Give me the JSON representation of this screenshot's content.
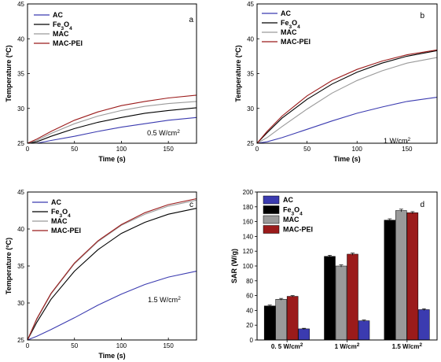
{
  "colors": {
    "AC": "#3b3bb0",
    "Fe3O4": "#000000",
    "MAC": "#9a9a9a",
    "MAC-PEI": "#9b1b1b"
  },
  "chart_data": [
    {
      "panel": "a",
      "type": "line",
      "title": "",
      "xlabel": "Time (s)",
      "ylabel": "Temperature (ºC)",
      "xlim": [
        0,
        180
      ],
      "ylim": [
        25,
        45
      ],
      "xticks": [
        "0",
        "50",
        "100",
        "150"
      ],
      "yticks": [
        "25",
        "30",
        "35",
        "40",
        "45"
      ],
      "annotation": {
        "main": "0.5 W/cm",
        "sup": "2"
      },
      "legend": [
        {
          "key": "AC",
          "main": "AC",
          "sub": ""
        },
        {
          "key": "Fe3O4",
          "main": "Fe",
          "sub": "3",
          "main2": "O",
          "sub2": "4"
        },
        {
          "key": "MAC",
          "main": "MAC",
          "sub": ""
        },
        {
          "key": "MAC-PEI",
          "main": "MAC-PEI",
          "sub": ""
        }
      ],
      "series": [
        {
          "key": "AC",
          "x": [
            0,
            10,
            25,
            50,
            75,
            100,
            125,
            150,
            180
          ],
          "y": [
            25.0,
            25.0,
            25.4,
            26.0,
            26.7,
            27.3,
            27.8,
            28.3,
            28.7
          ]
        },
        {
          "key": "Fe3O4",
          "x": [
            0,
            10,
            25,
            50,
            75,
            100,
            125,
            150,
            180
          ],
          "y": [
            25.0,
            25.2,
            26.0,
            27.1,
            28.0,
            28.7,
            29.3,
            29.7,
            30.1
          ]
        },
        {
          "key": "MAC",
          "x": [
            0,
            10,
            25,
            50,
            75,
            100,
            125,
            150,
            180
          ],
          "y": [
            25.0,
            25.4,
            26.4,
            27.8,
            28.9,
            29.7,
            30.3,
            30.7,
            31.0
          ]
        },
        {
          "key": "MAC-PEI",
          "x": [
            0,
            10,
            25,
            50,
            75,
            100,
            125,
            150,
            180
          ],
          "y": [
            25.0,
            25.6,
            26.7,
            28.3,
            29.5,
            30.4,
            31.0,
            31.5,
            31.9
          ]
        }
      ]
    },
    {
      "panel": "b",
      "type": "line",
      "title": "",
      "xlabel": "Time (s)",
      "ylabel": "Temperature (ºC)",
      "xlim": [
        0,
        180
      ],
      "ylim": [
        25,
        45
      ],
      "xticks": [
        "0",
        "50",
        "100",
        "150"
      ],
      "yticks": [
        "25",
        "30",
        "35",
        "40",
        "45"
      ],
      "annotation": {
        "main": "1 W/cm",
        "sup": "2"
      },
      "legend": [
        {
          "key": "AC",
          "main": "AC",
          "sub": ""
        },
        {
          "key": "Fe3O4",
          "main": "Fe",
          "sub": "3",
          "main2": "O",
          "sub2": "4"
        },
        {
          "key": "MAC",
          "main": "MAC",
          "sub": ""
        },
        {
          "key": "MAC-PEI",
          "main": "MAC-PEI",
          "sub": ""
        }
      ],
      "series": [
        {
          "key": "AC",
          "x": [
            0,
            10,
            25,
            50,
            75,
            100,
            125,
            150,
            180
          ],
          "y": [
            25.0,
            25.2,
            25.8,
            27.0,
            28.2,
            29.3,
            30.2,
            31.0,
            31.6
          ]
        },
        {
          "key": "Fe3O4",
          "x": [
            0,
            10,
            25,
            50,
            75,
            100,
            125,
            150,
            180
          ],
          "y": [
            25.0,
            26.5,
            28.6,
            31.3,
            33.5,
            35.2,
            36.5,
            37.5,
            38.3
          ]
        },
        {
          "key": "MAC",
          "x": [
            0,
            10,
            25,
            50,
            75,
            100,
            125,
            150,
            180
          ],
          "y": [
            25.0,
            25.8,
            27.4,
            29.9,
            32.2,
            34.0,
            35.4,
            36.5,
            37.3
          ]
        },
        {
          "key": "MAC-PEI",
          "x": [
            0,
            10,
            25,
            50,
            75,
            100,
            125,
            150,
            180
          ],
          "y": [
            25.0,
            26.7,
            28.9,
            31.8,
            34.0,
            35.6,
            36.8,
            37.7,
            38.4
          ]
        }
      ]
    },
    {
      "panel": "c",
      "type": "line",
      "title": "",
      "xlabel": "Time (s)",
      "ylabel": "Temperature (ºC)",
      "xlim": [
        0,
        180
      ],
      "ylim": [
        25,
        45
      ],
      "xticks": [
        "0",
        "50",
        "100",
        "150"
      ],
      "yticks": [
        "25",
        "30",
        "35",
        "40",
        "45"
      ],
      "annotation": {
        "main": "1.5 W/cm",
        "sup": "2"
      },
      "legend": [
        {
          "key": "AC",
          "main": "AC",
          "sub": ""
        },
        {
          "key": "Fe3O4",
          "main": "Fe",
          "sub": "3",
          "main2": "O",
          "sub2": "4"
        },
        {
          "key": "MAC",
          "main": "MAC",
          "sub": ""
        },
        {
          "key": "MAC-PEI",
          "main": "MAC-PEI",
          "sub": ""
        }
      ],
      "series": [
        {
          "key": "AC",
          "x": [
            0,
            10,
            25,
            50,
            75,
            100,
            125,
            150,
            180
          ],
          "y": [
            25.0,
            25.5,
            26.4,
            28.0,
            29.7,
            31.2,
            32.5,
            33.5,
            34.3
          ]
        },
        {
          "key": "Fe3O4",
          "x": [
            0,
            10,
            25,
            50,
            75,
            100,
            125,
            150,
            180
          ],
          "y": [
            25.0,
            27.4,
            30.5,
            34.3,
            37.2,
            39.4,
            40.9,
            42.0,
            42.8
          ]
        },
        {
          "key": "MAC",
          "x": [
            0,
            10,
            25,
            50,
            75,
            100,
            125,
            150,
            180
          ],
          "y": [
            25.0,
            27.8,
            31.2,
            35.3,
            38.3,
            40.5,
            42.0,
            43.1,
            43.9
          ]
        },
        {
          "key": "MAC-PEI",
          "x": [
            0,
            10,
            25,
            50,
            75,
            100,
            125,
            150,
            180
          ],
          "y": [
            25.0,
            27.9,
            31.3,
            35.4,
            38.4,
            40.6,
            42.2,
            43.3,
            44.1
          ]
        }
      ]
    },
    {
      "panel": "d",
      "type": "bar",
      "title": "",
      "xlabel": "",
      "ylabel": "SAR (W/g)",
      "ylim": [
        0,
        200
      ],
      "yticks": [
        "0",
        "20",
        "40",
        "60",
        "80",
        "100",
        "120",
        "140",
        "160",
        "180",
        "200"
      ],
      "categories": [
        {
          "main": "0. 5 W/cm",
          "sup": "2"
        },
        {
          "main": "1 W/cm",
          "sup": "2"
        },
        {
          "main": "1.5 W/cm",
          "sup": "2"
        }
      ],
      "legend": [
        {
          "key": "AC",
          "main": "AC",
          "sub": ""
        },
        {
          "key": "Fe3O4",
          "main": "Fe",
          "sub": "3",
          "main2": "O",
          "sub2": "4"
        },
        {
          "key": "MAC",
          "main": "MAC",
          "sub": ""
        },
        {
          "key": "MAC-PEI",
          "main": "MAC-PEI",
          "sub": ""
        }
      ],
      "bar_order": [
        "Fe3O4",
        "MAC",
        "MAC-PEI",
        "AC"
      ],
      "series": [
        {
          "key": "AC",
          "values": [
            15,
            26,
            41
          ],
          "errors": [
            0.8,
            1.0,
            1.2
          ]
        },
        {
          "key": "Fe3O4",
          "values": [
            46,
            113,
            162
          ],
          "errors": [
            1.2,
            1.5,
            1.8
          ]
        },
        {
          "key": "MAC",
          "values": [
            55,
            100,
            175
          ],
          "errors": [
            1.2,
            1.5,
            1.8
          ]
        },
        {
          "key": "MAC-PEI",
          "values": [
            59,
            116,
            172
          ],
          "errors": [
            1.0,
            1.5,
            1.5
          ]
        }
      ]
    }
  ]
}
